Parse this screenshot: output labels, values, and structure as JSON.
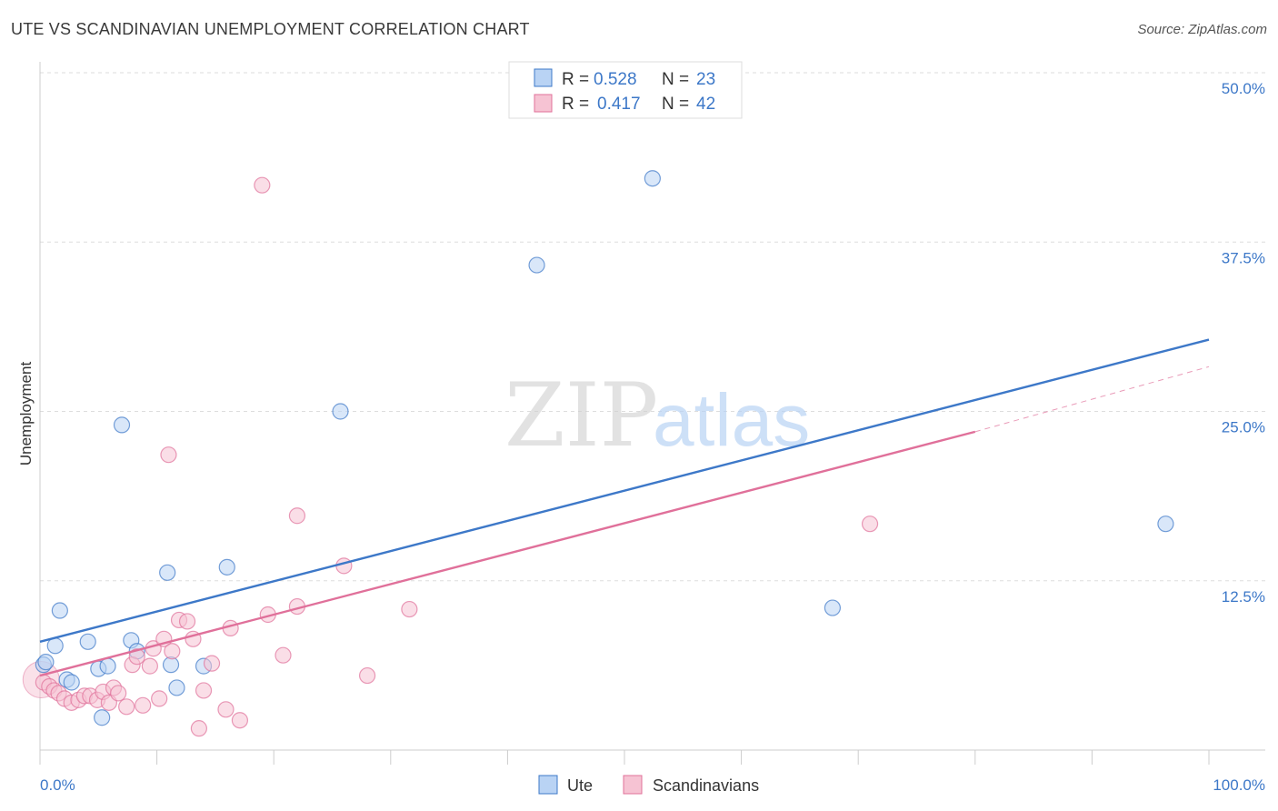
{
  "header": {
    "title": "UTE VS SCANDINAVIAN UNEMPLOYMENT CORRELATION CHART",
    "source": "Source: ZipAtlas.com"
  },
  "watermark": {
    "zip": "ZIP",
    "atlas": "atlas"
  },
  "colors": {
    "ute": "#3d78c8",
    "ute_fill": "#b9d3f4",
    "scand": "#e0709a",
    "scand_fill": "#f6c3d3",
    "grid": "#dddddd",
    "axis_label": "#3d78c8"
  },
  "legend": {
    "rows": [
      {
        "r_label": "R =",
        "r_value": "0.528",
        "n_label": "N =",
        "n_value": "23"
      },
      {
        "r_label": "R =",
        "r_value": "0.417",
        "n_label": "N =",
        "n_value": "42"
      }
    ]
  },
  "bottom_legend": {
    "ute": "Ute",
    "scand": "Scandinavians"
  },
  "chart_data": {
    "type": "scatter",
    "title": "UTE VS SCANDINAVIAN UNEMPLOYMENT CORRELATION CHART",
    "xlabel": "",
    "ylabel": "Unemployment",
    "xlim": [
      0,
      100
    ],
    "ylim": [
      0,
      50
    ],
    "x_tick_labels": [
      "0.0%",
      "100.0%"
    ],
    "y_ticks": [
      12.5,
      25.0,
      37.5,
      50.0
    ],
    "y_tick_labels": [
      "12.5%",
      "25.0%",
      "37.5%",
      "50.0%"
    ],
    "grid": true,
    "series": [
      {
        "name": "Ute",
        "points": [
          [
            0.3,
            6.3
          ],
          [
            1.3,
            7.7
          ],
          [
            1.7,
            10.3
          ],
          [
            2.3,
            5.2
          ],
          [
            2.7,
            5.0
          ],
          [
            4.1,
            8.0
          ],
          [
            5.0,
            6.0
          ],
          [
            5.3,
            2.4
          ],
          [
            5.8,
            6.2
          ],
          [
            7.8,
            8.1
          ],
          [
            8.3,
            7.3
          ],
          [
            10.9,
            13.1
          ],
          [
            11.2,
            6.3
          ],
          [
            11.7,
            4.6
          ],
          [
            14.0,
            6.2
          ],
          [
            7.0,
            24.0
          ],
          [
            16.0,
            13.5
          ],
          [
            25.7,
            25.0
          ],
          [
            42.5,
            35.8
          ],
          [
            52.4,
            42.2
          ],
          [
            67.8,
            10.5
          ],
          [
            96.3,
            16.7
          ],
          [
            0.5,
            6.5
          ]
        ],
        "trend": {
          "x1": 0,
          "y1": 8.0,
          "x2": 100,
          "y2": 30.3
        }
      },
      {
        "name": "Scandinavians",
        "points": [
          [
            0.3,
            5.0
          ],
          [
            0.8,
            4.7
          ],
          [
            1.2,
            4.4
          ],
          [
            1.6,
            4.2
          ],
          [
            2.1,
            3.8
          ],
          [
            2.7,
            3.5
          ],
          [
            3.3,
            3.7
          ],
          [
            3.8,
            4.0
          ],
          [
            4.3,
            4.0
          ],
          [
            4.9,
            3.7
          ],
          [
            5.4,
            4.3
          ],
          [
            5.9,
            3.5
          ],
          [
            6.3,
            4.6
          ],
          [
            6.7,
            4.2
          ],
          [
            7.4,
            3.2
          ],
          [
            7.9,
            6.3
          ],
          [
            8.3,
            6.9
          ],
          [
            8.8,
            3.3
          ],
          [
            9.4,
            6.2
          ],
          [
            9.7,
            7.5
          ],
          [
            10.2,
            3.8
          ],
          [
            10.6,
            8.2
          ],
          [
            11.3,
            7.3
          ],
          [
            11.9,
            9.6
          ],
          [
            12.6,
            9.5
          ],
          [
            13.1,
            8.2
          ],
          [
            13.6,
            1.6
          ],
          [
            14.0,
            4.4
          ],
          [
            14.7,
            6.4
          ],
          [
            15.9,
            3.0
          ],
          [
            16.3,
            9.0
          ],
          [
            17.1,
            2.2
          ],
          [
            19.0,
            41.7
          ],
          [
            19.5,
            10.0
          ],
          [
            20.8,
            7.0
          ],
          [
            22.0,
            17.3
          ],
          [
            22.0,
            10.6
          ],
          [
            11.0,
            21.8
          ],
          [
            26.0,
            13.6
          ],
          [
            28.0,
            5.5
          ],
          [
            31.6,
            10.4
          ],
          [
            71.0,
            16.7
          ]
        ],
        "trend": {
          "x1": 0,
          "y1": 5.5,
          "x2": 80,
          "y2": 23.5
        },
        "trend_dashed": {
          "x1": 80,
          "y1": 23.5,
          "x2": 100,
          "y2": 28.3
        }
      }
    ]
  }
}
